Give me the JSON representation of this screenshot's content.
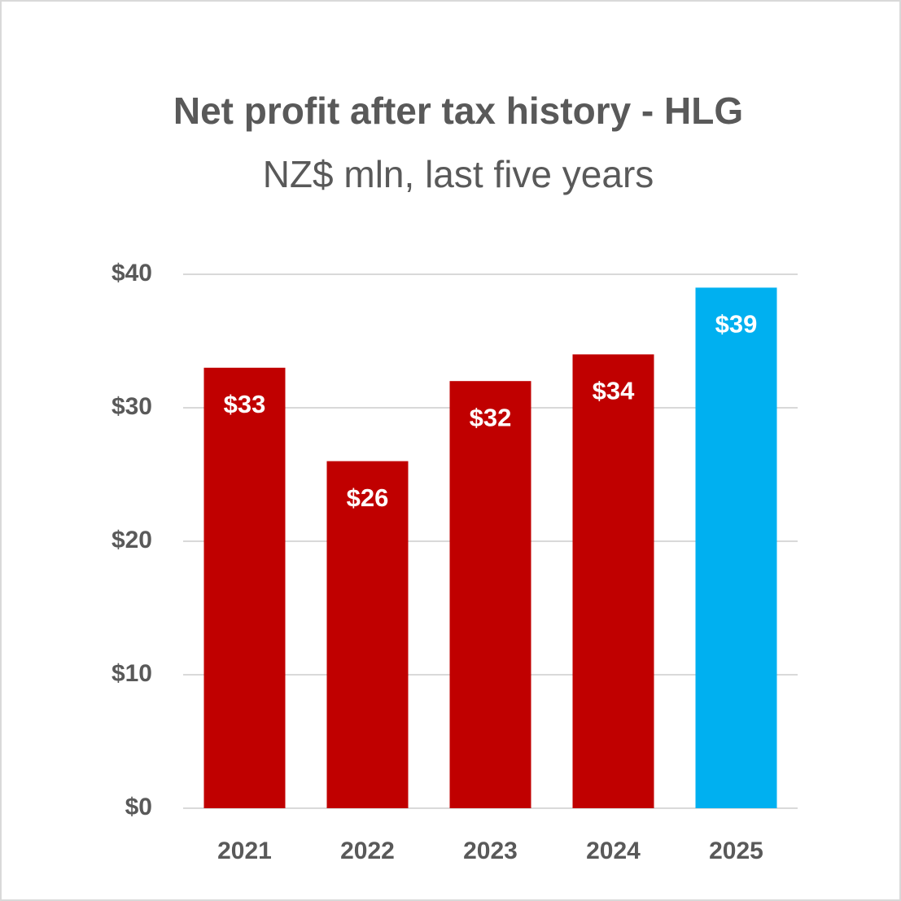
{
  "chart_data": {
    "type": "bar",
    "title": "Net profit after tax history - HLG",
    "subtitle": "NZ$ mln, last five years",
    "categories": [
      "2021",
      "2022",
      "2023",
      "2024",
      "2025"
    ],
    "values": [
      33,
      26,
      32,
      34,
      39
    ],
    "value_labels": [
      "$33",
      "$26",
      "$32",
      "$34",
      "$39"
    ],
    "colors": [
      "#c00000",
      "#c00000",
      "#c00000",
      "#c00000",
      "#00b0f0"
    ],
    "ylim": [
      0,
      40
    ],
    "yticks": [
      {
        "value": 0,
        "label": "$0"
      },
      {
        "value": 10,
        "label": "$10"
      },
      {
        "value": 20,
        "label": "$20"
      },
      {
        "value": 30,
        "label": "$30"
      },
      {
        "value": 40,
        "label": "$40"
      }
    ],
    "grid": true
  }
}
